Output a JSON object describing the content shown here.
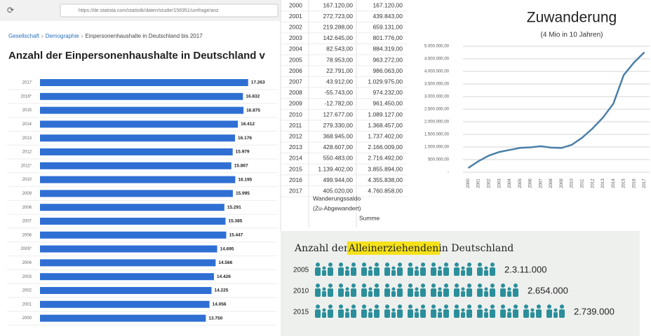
{
  "browser": {
    "url": "https://de.statista.com/statistik/daten/studie/156951/umfrage/anz"
  },
  "breadcrumb": [
    "Gesellschaft",
    "Demographie",
    "Einpersonenhaushalte in Deutschland bis 2017"
  ],
  "breadcrumb_separator": "›",
  "chart_data": [
    {
      "type": "bar",
      "orientation": "horizontal",
      "title": "Anzahl der Einpersonenhaushalte in Deutschland v",
      "categories": [
        "2017",
        "2016*",
        "2015",
        "2014",
        "2013",
        "2012",
        "2011*",
        "2010",
        "2009",
        "2008",
        "2007",
        "2006",
        "2005*",
        "2004",
        "2003",
        "2002",
        "2001",
        "2000"
      ],
      "values": [
        17263,
        16832,
        16875,
        16412,
        16176,
        15979,
        15867,
        16195,
        15995,
        15291,
        15385,
        15447,
        14695,
        14566,
        14426,
        14225,
        14056,
        13750
      ],
      "value_labels": [
        "17.263",
        "16.832",
        "16.875",
        "16.412",
        "16.176",
        "15.979",
        "15.867",
        "16.195",
        "15.995",
        "15.291",
        "15.385",
        "15.447",
        "14.695",
        "14.566",
        "14.426",
        "14.225",
        "14.056",
        "13.750"
      ],
      "color": "#2f6fd3",
      "xlim": [
        0,
        18500
      ]
    },
    {
      "type": "line",
      "title": "Zuwanderung",
      "subtitle": "(4 Mio in 10 Jahren)",
      "x": [
        "2000",
        "2001",
        "2002",
        "2003",
        "2004",
        "2005",
        "2006",
        "2007",
        "2008",
        "2009",
        "2010",
        "2011",
        "2012",
        "2013",
        "2014",
        "2015",
        "2016",
        "2017"
      ],
      "values": [
        167120,
        439843,
        659131,
        801776,
        884319,
        963272,
        986063,
        1029975,
        974232,
        961450,
        1089127,
        1368457,
        1737402,
        2166009,
        2716492,
        3855894,
        4355838,
        4760858
      ],
      "color": "#4a7fa8",
      "ylim": [
        0,
        5000000
      ],
      "yticks": [
        {
          "value": 0,
          "label": "-"
        },
        {
          "value": 500000,
          "label": "500.000,00"
        },
        {
          "value": 1000000,
          "label": "1.000.000,00"
        },
        {
          "value": 1500000,
          "label": "1.500.000,00"
        },
        {
          "value": 2000000,
          "label": "2.000.000,00"
        },
        {
          "value": 2500000,
          "label": "2.500.000,00"
        },
        {
          "value": 3000000,
          "label": "3.000.000,00"
        },
        {
          "value": 3500000,
          "label": "3.500.000,00"
        },
        {
          "value": 4000000,
          "label": "4.000.000,00"
        },
        {
          "value": 4500000,
          "label": "4.500.000,00"
        },
        {
          "value": 5000000,
          "label": "5.000.000,00"
        }
      ],
      "grid": true
    }
  ],
  "table": {
    "rows": [
      [
        "2000",
        "167.120,00",
        "167.120,00"
      ],
      [
        "2001",
        "272.723,00",
        "439.843,00"
      ],
      [
        "2002",
        "219.288,00",
        "659.131,00"
      ],
      [
        "2003",
        "142.645,00",
        "801.776,00"
      ],
      [
        "2004",
        "82.543,00",
        "884.319,00"
      ],
      [
        "2005",
        "78.953,00",
        "963.272,00"
      ],
      [
        "2006",
        "22.791,00",
        "986.063,00"
      ],
      [
        "2007",
        "43.912,00",
        "1.029.975,00"
      ],
      [
        "2008",
        "-55.743,00",
        "974.232,00"
      ],
      [
        "2009",
        "-12.782,00",
        "961.450,00"
      ],
      [
        "2010",
        "127.677,00",
        "1.089.127,00"
      ],
      [
        "2011",
        "279.330,00",
        "1.368.457,00"
      ],
      [
        "2012",
        "368.945,00",
        "1.737.402,00"
      ],
      [
        "2013",
        "428.607,00",
        "2.166.009,00"
      ],
      [
        "2014",
        "550.483,00",
        "2.716.492,00"
      ],
      [
        "2015",
        "1.139.402,00",
        "3.855.894,00"
      ],
      [
        "2016",
        "499.944,00",
        "4.355.838,00"
      ],
      [
        "2017",
        "405.020,00",
        "4.760.858,00"
      ]
    ],
    "footer": [
      "Wanderungssaldo",
      "(Zu-Abgewandert)",
      "Summe"
    ]
  },
  "pictogram": {
    "title_parts": [
      "Anzahl der ",
      "Alleinerziehenden",
      " in Deutschland"
    ],
    "categories": [
      "2005",
      "2010",
      "2015"
    ],
    "value_labels": [
      "2.3.11.000",
      "2.654.000",
      "2.739.000"
    ],
    "color": "#2b8f9b"
  }
}
